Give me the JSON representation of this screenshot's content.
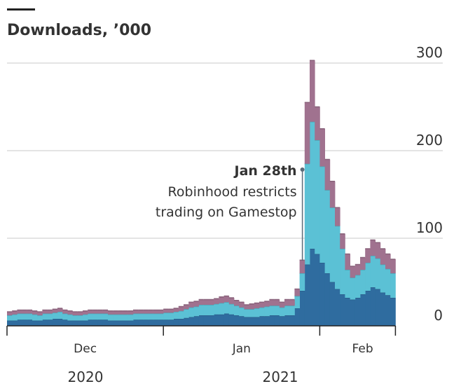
{
  "chart_data": {
    "type": "stacked-step-area",
    "title": "Downloads, ’000",
    "categories": [
      null,
      null,
      null,
      null,
      null,
      null,
      null,
      null,
      null,
      null,
      null,
      null,
      null,
      null,
      null,
      "Dec",
      null,
      null,
      null,
      null,
      null,
      null,
      null,
      null,
      null,
      null,
      null,
      null,
      null,
      null,
      null,
      null,
      null,
      null,
      null,
      null,
      null,
      null,
      null,
      null,
      null,
      null,
      null,
      null,
      null,
      null,
      "Jan",
      null,
      null,
      null,
      null,
      null,
      null,
      null,
      null,
      null,
      null,
      null,
      null,
      null,
      null,
      null,
      null,
      null,
      null,
      null,
      null,
      null,
      null,
      null,
      "Feb",
      null,
      null,
      null,
      null,
      null,
      null
    ],
    "year_labels": [
      "2020",
      "2021"
    ],
    "series": [
      {
        "color": "#2f6c9f",
        "values": [
          6,
          6,
          7,
          7,
          7,
          6,
          6,
          7,
          7,
          8,
          8,
          7,
          6,
          6,
          6,
          6,
          7,
          7,
          7,
          7,
          6,
          6,
          6,
          6,
          6,
          7,
          7,
          7,
          7,
          7,
          7,
          7,
          7,
          8,
          8,
          9,
          10,
          11,
          12,
          12,
          12,
          13,
          13,
          14,
          13,
          12,
          11,
          10,
          10,
          10,
          11,
          11,
          12,
          12,
          11,
          12,
          12,
          20,
          40,
          70,
          88,
          82,
          72,
          60,
          50,
          42,
          36,
          32,
          30,
          32,
          36,
          40,
          44,
          42,
          38,
          35,
          32
        ]
      },
      {
        "color": "#5bc1d5",
        "values": [
          6,
          7,
          7,
          7,
          7,
          7,
          6,
          7,
          7,
          7,
          8,
          7,
          7,
          6,
          6,
          7,
          7,
          7,
          7,
          7,
          7,
          7,
          7,
          7,
          7,
          7,
          7,
          7,
          7,
          7,
          7,
          8,
          8,
          8,
          9,
          10,
          11,
          11,
          12,
          12,
          12,
          12,
          13,
          13,
          12,
          11,
          10,
          9,
          9,
          10,
          10,
          11,
          11,
          11,
          10,
          11,
          11,
          14,
          20,
          115,
          145,
          130,
          110,
          95,
          85,
          72,
          52,
          32,
          25,
          26,
          28,
          32,
          36,
          35,
          32,
          30,
          28
        ]
      },
      {
        "color": "#a0728f",
        "values": [
          4,
          4,
          4,
          4,
          4,
          4,
          4,
          4,
          4,
          4,
          4,
          4,
          4,
          4,
          4,
          4,
          4,
          4,
          4,
          4,
          4,
          4,
          4,
          4,
          4,
          4,
          4,
          4,
          4,
          4,
          4,
          4,
          4,
          4,
          5,
          5,
          6,
          6,
          6,
          6,
          6,
          6,
          7,
          7,
          7,
          6,
          6,
          5,
          6,
          6,
          6,
          6,
          7,
          7,
          6,
          7,
          7,
          8,
          15,
          70,
          70,
          38,
          43,
          35,
          30,
          21,
          17,
          18,
          13,
          12,
          14,
          16,
          18,
          18,
          18,
          17,
          16
        ]
      }
    ],
    "ylim": [
      0,
      300
    ],
    "yticks": [
      0,
      100,
      200,
      300
    ],
    "grid": true,
    "annotation": {
      "title": "Jan 28th",
      "lines": [
        "Robinhood restricts",
        "trading on Gamestop"
      ]
    }
  }
}
